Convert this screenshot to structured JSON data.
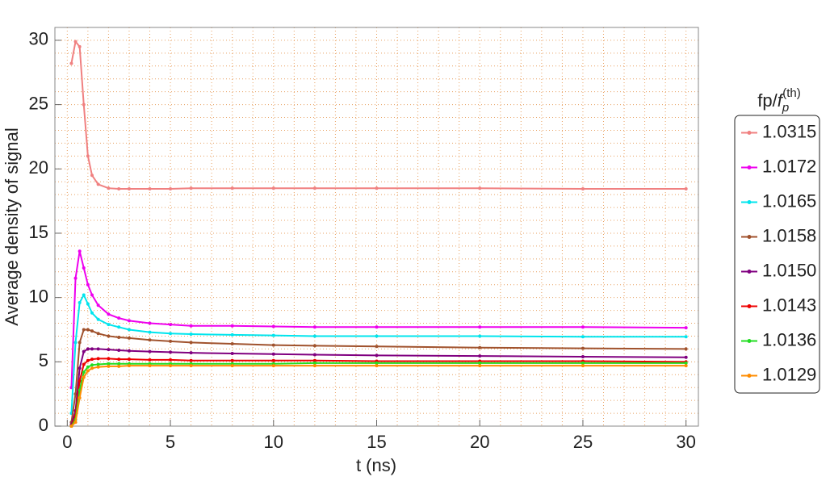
{
  "chart_data": {
    "type": "line",
    "xlabel": "t (ns)",
    "ylabel": "Average density of signal",
    "legend_title": {
      "prefix": "fp/",
      "base": "f",
      "sub": "p",
      "sup": "(th)"
    },
    "legend": "right",
    "grid": true,
    "minor_divisions": 5,
    "xlim": [
      -0.6,
      30.6
    ],
    "xticks": [
      0,
      5,
      10,
      15,
      20,
      25,
      30
    ],
    "ylim": [
      0,
      31
    ],
    "yticks": [
      0,
      5,
      10,
      15,
      20,
      25,
      30
    ],
    "x": [
      0.2,
      0.4,
      0.6,
      0.8,
      1.0,
      1.2,
      1.5,
      2,
      2.5,
      3,
      4,
      5,
      6,
      8,
      10,
      12,
      15,
      20,
      25,
      30
    ],
    "series": [
      {
        "name": "1.0315",
        "color": "#f08080",
        "values": [
          28.2,
          29.9,
          29.5,
          25,
          21,
          19.5,
          18.8,
          18.5,
          18.45,
          18.45,
          18.45,
          18.45,
          18.5,
          18.5,
          18.5,
          18.5,
          18.5,
          18.5,
          18.45,
          18.45
        ]
      },
      {
        "name": "1.0172",
        "color": "#ee00ee",
        "values": [
          3,
          11.5,
          13.6,
          12.3,
          11,
          10.2,
          9.4,
          8.7,
          8.4,
          8.2,
          8.0,
          7.9,
          7.8,
          7.8,
          7.75,
          7.7,
          7.7,
          7.7,
          7.7,
          7.65
        ]
      },
      {
        "name": "1.0165",
        "color": "#00e5ee",
        "values": [
          1,
          6.5,
          9.6,
          10.2,
          9.5,
          8.8,
          8.3,
          7.9,
          7.7,
          7.5,
          7.3,
          7.2,
          7.15,
          7.1,
          7.05,
          7.0,
          7.0,
          7.0,
          6.95,
          6.95
        ]
      },
      {
        "name": "1.0158",
        "color": "#a0522d",
        "values": [
          0.3,
          2.5,
          6.5,
          7.5,
          7.5,
          7.4,
          7.2,
          7.0,
          6.9,
          6.85,
          6.7,
          6.6,
          6.5,
          6.4,
          6.3,
          6.25,
          6.2,
          6.1,
          6.05,
          6.0
        ]
      },
      {
        "name": "1.0150",
        "color": "#800080",
        "values": [
          0.1,
          1.2,
          4.5,
          5.8,
          6.0,
          6.0,
          6.0,
          5.95,
          5.9,
          5.85,
          5.8,
          5.75,
          5.7,
          5.65,
          5.6,
          5.55,
          5.5,
          5.45,
          5.4,
          5.35
        ]
      },
      {
        "name": "1.0143",
        "color": "#ee0000",
        "values": [
          0,
          0.8,
          3.5,
          4.8,
          5.1,
          5.2,
          5.25,
          5.25,
          5.2,
          5.2,
          5.15,
          5.15,
          5.1,
          5.1,
          5.1,
          5.1,
          5.05,
          5.05,
          5.05,
          5.0
        ]
      },
      {
        "name": "1.0136",
        "color": "#22dd22",
        "values": [
          0,
          0.5,
          2.8,
          4.2,
          4.6,
          4.75,
          4.8,
          4.85,
          4.85,
          4.85,
          4.85,
          4.85,
          4.85,
          4.85,
          4.85,
          4.9,
          4.9,
          4.9,
          4.9,
          4.9
        ]
      },
      {
        "name": "1.0129",
        "color": "#ff8c00",
        "values": [
          0,
          0.3,
          2.2,
          3.8,
          4.3,
          4.5,
          4.6,
          4.65,
          4.65,
          4.7,
          4.7,
          4.7,
          4.7,
          4.7,
          4.7,
          4.7,
          4.7,
          4.7,
          4.7,
          4.7
        ]
      }
    ]
  }
}
